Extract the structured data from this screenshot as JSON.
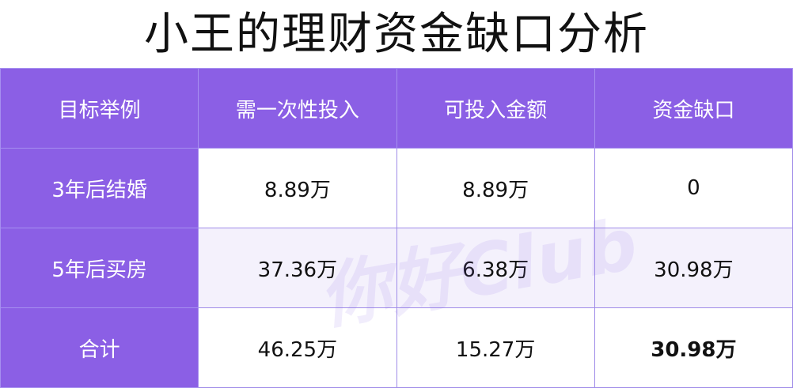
{
  "title": "小王的理财资金缺口分析",
  "table": {
    "headers": [
      "目标举例",
      "需一次性投入",
      "可投入金额",
      "资金缺口"
    ],
    "rows": [
      [
        "3年后结婚",
        "8.89万",
        "8.89万",
        "0"
      ],
      [
        "5年后买房",
        "37.36万",
        "6.38万",
        "30.98万"
      ],
      [
        "合计",
        "46.25万",
        "15.27万",
        "30.98万"
      ]
    ]
  },
  "watermark": "你好Club",
  "colors": {
    "header": "#8b5fe5",
    "border": "#9f8be8"
  }
}
